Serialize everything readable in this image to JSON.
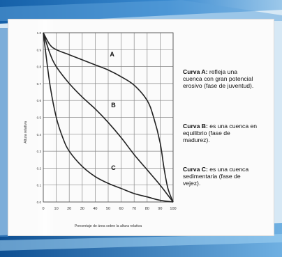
{
  "chart_data": {
    "type": "line",
    "xlabel": "Porcentaje de área sobre la altura relativa",
    "ylabel": "Altura relativa",
    "xlim": [
      0,
      100
    ],
    "ylim": [
      0,
      1.0
    ],
    "x_ticks": [
      "0",
      "10",
      "20",
      "30",
      "40",
      "50",
      "60",
      "70",
      "80",
      "90",
      "100"
    ],
    "y_ticks": [
      "0.0",
      "0.1",
      "0.2",
      "0.3",
      "0.4",
      "0.5",
      "0.6",
      "0.7",
      "0.8",
      "0.9",
      "1.0"
    ],
    "grid": true,
    "series": [
      {
        "name": "A",
        "x": [
          0,
          5,
          10,
          20,
          30,
          40,
          50,
          60,
          70,
          80,
          85,
          90,
          93,
          96,
          100
        ],
        "y": [
          1.0,
          0.93,
          0.9,
          0.87,
          0.84,
          0.81,
          0.78,
          0.74,
          0.69,
          0.6,
          0.5,
          0.35,
          0.2,
          0.08,
          0.0
        ]
      },
      {
        "name": "B",
        "x": [
          0,
          5,
          10,
          20,
          30,
          40,
          50,
          60,
          70,
          80,
          90,
          95,
          100
        ],
        "y": [
          1.0,
          0.88,
          0.8,
          0.7,
          0.62,
          0.55,
          0.47,
          0.38,
          0.28,
          0.19,
          0.1,
          0.05,
          0.0
        ]
      },
      {
        "name": "C",
        "x": [
          0,
          5,
          10,
          15,
          20,
          30,
          40,
          50,
          60,
          70,
          80,
          90,
          100
        ],
        "y": [
          1.0,
          0.7,
          0.5,
          0.38,
          0.3,
          0.21,
          0.15,
          0.11,
          0.08,
          0.05,
          0.03,
          0.01,
          0.0
        ]
      }
    ],
    "annotations": [
      {
        "text": "A",
        "x": 53,
        "y": 0.86
      },
      {
        "text": "B",
        "x": 54,
        "y": 0.56
      },
      {
        "text": "C",
        "x": 54,
        "y": 0.19
      }
    ]
  },
  "captions": [
    {
      "label": "Curva A:",
      "text": "refleja una cuenca con gran potencial erosivo (fase de juventud)."
    },
    {
      "label": "Curva B:",
      "text": "es una cuenca en equilibrio (fase de madurez)."
    },
    {
      "label": "Curva C:",
      "text": "es una cuenca sedimentaria (fase de vejez)."
    }
  ],
  "colors": {
    "curve": "#222222",
    "grid": "#8a8a8a",
    "accent_bg": "#1b6fb8"
  }
}
